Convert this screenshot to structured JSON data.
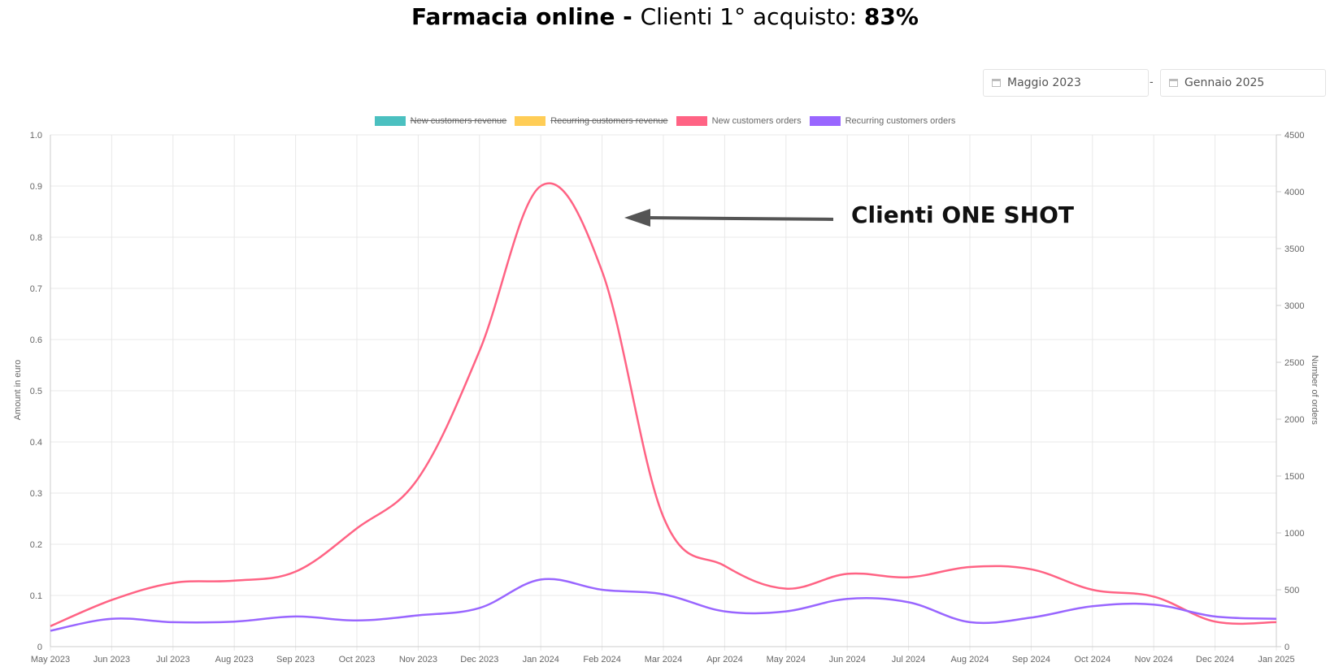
{
  "header": {
    "title_bold": "Farmacia online - ",
    "title_normal": "Clienti 1° acquisto: ",
    "title_value": "83%"
  },
  "date_range": {
    "from": "Maggio 2023",
    "separator": "-",
    "to": "Gennaio 2025"
  },
  "annotation": "Clienti ONE SHOT",
  "chart_data": {
    "type": "line",
    "categories": [
      "May 2023",
      "Jun 2023",
      "Jul 2023",
      "Aug 2023",
      "Sep 2023",
      "Oct 2023",
      "Nov 2023",
      "Dec 2023",
      "Jan 2024",
      "Feb 2024",
      "Mar 2024",
      "Apr 2024",
      "May 2024",
      "Jun 2024",
      "Jul 2024",
      "Aug 2024",
      "Sep 2024",
      "Oct 2024",
      "Nov 2024",
      "Dec 2024",
      "Jan 2025"
    ],
    "legend": [
      {
        "name": "New customers revenue",
        "color": "#4bc0c0",
        "hidden": true
      },
      {
        "name": "Recurring customers revenue",
        "color": "#ffcd56",
        "hidden": true
      },
      {
        "name": "New customers orders",
        "color": "#ff6384",
        "hidden": false
      },
      {
        "name": "Recurring customers orders",
        "color": "#9966ff",
        "hidden": false
      }
    ],
    "series": [
      {
        "name": "New customers orders",
        "color": "#ff6384",
        "axis": "right",
        "values": [
          180,
          410,
          560,
          580,
          660,
          1040,
          1480,
          2600,
          4050,
          3300,
          1140,
          710,
          510,
          640,
          610,
          700,
          680,
          500,
          440,
          220,
          215
        ]
      },
      {
        "name": "Recurring customers orders",
        "color": "#9966ff",
        "axis": "right",
        "values": [
          140,
          245,
          215,
          220,
          265,
          230,
          275,
          340,
          590,
          500,
          460,
          310,
          310,
          420,
          390,
          215,
          255,
          355,
          370,
          265,
          245
        ]
      }
    ],
    "left_axis": {
      "label": "Amount in euro",
      "min": 0,
      "max": 1.0,
      "ticks": [
        "0",
        "0.1",
        "0.2",
        "0.3",
        "0.4",
        "0.5",
        "0.6",
        "0.7",
        "0.8",
        "0.9",
        "1.0"
      ]
    },
    "right_axis": {
      "label": "Number of orders",
      "min": 0,
      "max": 4500,
      "ticks": [
        "0",
        "500",
        "1000",
        "1500",
        "2000",
        "2500",
        "3000",
        "3500",
        "4000",
        "4500"
      ]
    },
    "grid": true,
    "legend_position": "top-center"
  }
}
